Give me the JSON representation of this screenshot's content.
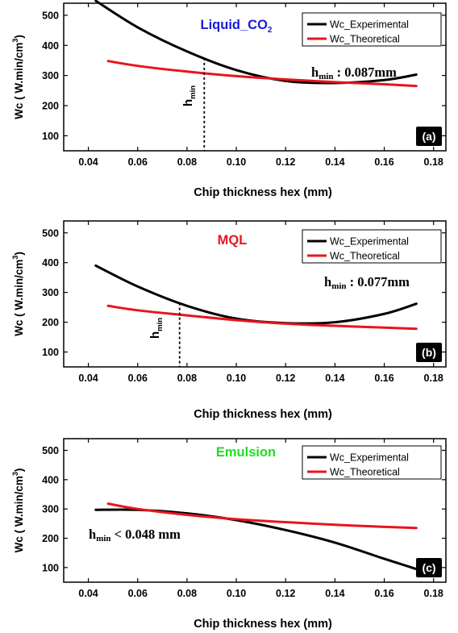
{
  "chart_data": [
    {
      "type": "line",
      "panel_label": "(a)",
      "title": "Liquid_CO",
      "title_sub": "2",
      "title_color": "#1a1adc",
      "xlabel": "Chip thickness hex (mm)",
      "ylabel": "Wc ( W.min/cm",
      "ylabel_sup": "3",
      "ylabel_tail": ")",
      "xlim": [
        0.03,
        0.185
      ],
      "ylim": [
        50,
        540
      ],
      "xticks": [
        "0.04",
        "0.06",
        "0.08",
        "0.10",
        "0.12",
        "0.14",
        "0.16",
        "0.18"
      ],
      "yticks": [
        "100",
        "200",
        "300",
        "400",
        "500"
      ],
      "series": [
        {
          "name": "Wc_Experimental",
          "color": "#000000",
          "x": [
            0.043,
            0.06,
            0.08,
            0.1,
            0.12,
            0.14,
            0.16,
            0.173
          ],
          "y": [
            548,
            460,
            380,
            318,
            282,
            275,
            285,
            303
          ]
        },
        {
          "name": "Wc_Theoretical",
          "color": "#e8141e",
          "x": [
            0.048,
            0.06,
            0.08,
            0.1,
            0.12,
            0.14,
            0.16,
            0.173
          ],
          "y": [
            348,
            332,
            313,
            298,
            287,
            278,
            271,
            265
          ]
        }
      ],
      "hmin_x": 0.087,
      "hmin_marker": "h",
      "hmin_marker_sub": "min",
      "annotation_h": "h",
      "annotation_sub": "min",
      "annotation_text": " : 0.087mm"
    },
    {
      "type": "line",
      "panel_label": "(b)",
      "title": "MQL",
      "title_sub": "",
      "title_color": "#e8141e",
      "xlabel": "Chip thickness hex (mm)",
      "ylabel": "Wc ( W.min/cm",
      "ylabel_sup": "3",
      "ylabel_tail": ")",
      "xlim": [
        0.03,
        0.185
      ],
      "ylim": [
        50,
        540
      ],
      "xticks": [
        "0.04",
        "0.06",
        "0.08",
        "0.10",
        "0.12",
        "0.14",
        "0.16",
        "0.18"
      ],
      "yticks": [
        "100",
        "200",
        "300",
        "400",
        "500"
      ],
      "series": [
        {
          "name": "Wc_Experimental",
          "color": "#000000",
          "x": [
            0.043,
            0.06,
            0.08,
            0.1,
            0.12,
            0.14,
            0.16,
            0.173
          ],
          "y": [
            390,
            320,
            255,
            212,
            197,
            200,
            228,
            262
          ]
        },
        {
          "name": "Wc_Theoretical",
          "color": "#e8141e",
          "x": [
            0.048,
            0.06,
            0.08,
            0.1,
            0.12,
            0.14,
            0.16,
            0.173
          ],
          "y": [
            255,
            240,
            223,
            207,
            195,
            188,
            182,
            178
          ]
        }
      ],
      "hmin_x": 0.077,
      "hmin_marker": "h",
      "hmin_marker_sub": "min",
      "annotation_h": "h",
      "annotation_sub": "min",
      "annotation_text": " : 0.077mm"
    },
    {
      "type": "line",
      "panel_label": "(c)",
      "title": "Emulsion",
      "title_sub": "",
      "title_color": "#22dd22",
      "xlabel": "Chip thickness hex (mm)",
      "ylabel": "Wc ( W.min/cm",
      "ylabel_sup": "3",
      "ylabel_tail": ")",
      "xlim": [
        0.03,
        0.185
      ],
      "ylim": [
        50,
        540
      ],
      "xticks": [
        "0.04",
        "0.06",
        "0.08",
        "0.10",
        "0.12",
        "0.14",
        "0.16",
        "0.18"
      ],
      "yticks": [
        "100",
        "200",
        "300",
        "400",
        "500"
      ],
      "series": [
        {
          "name": "Wc_Experimental",
          "color": "#000000",
          "x": [
            0.043,
            0.06,
            0.08,
            0.1,
            0.12,
            0.14,
            0.16,
            0.173
          ],
          "y": [
            297,
            297,
            285,
            262,
            228,
            185,
            130,
            95
          ]
        },
        {
          "name": "Wc_Theoretical",
          "color": "#e8141e",
          "x": [
            0.048,
            0.06,
            0.08,
            0.1,
            0.12,
            0.14,
            0.16,
            0.173
          ],
          "y": [
            318,
            300,
            280,
            265,
            255,
            246,
            239,
            235
          ]
        }
      ],
      "hmin_x": null,
      "annotation_h": "h",
      "annotation_sub": "min",
      "annotation_text": " < 0.048 mm"
    }
  ]
}
